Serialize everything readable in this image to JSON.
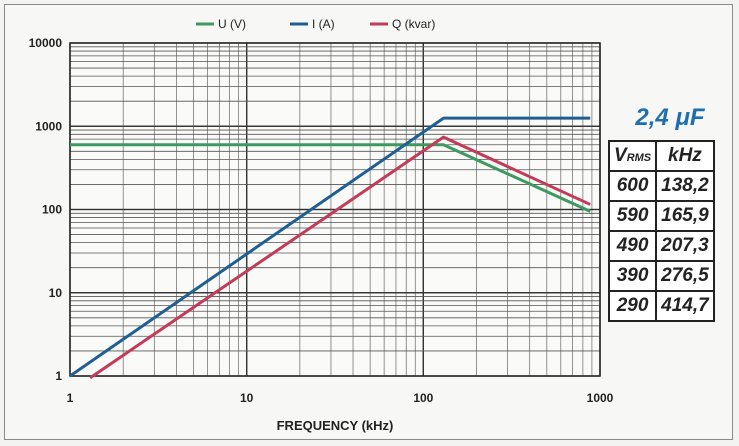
{
  "chart_data": {
    "type": "line",
    "x_scale": "log",
    "y_scale": "log",
    "xlim": [
      1,
      1000
    ],
    "ylim": [
      1,
      10000
    ],
    "xlabel": "FREQUENCY (kHz)",
    "x_ticks": [
      "1",
      "10",
      "100",
      "1000"
    ],
    "y_ticks": [
      "1",
      "10",
      "100",
      "1000",
      "10000"
    ],
    "grid": true,
    "legend_position": "top",
    "series": [
      {
        "name": "U (V)",
        "color": "#3c9a5e",
        "x": [
          1,
          130,
          880
        ],
        "y": [
          600,
          600,
          95
        ]
      },
      {
        "name": "I (A)",
        "color": "#1f5f94",
        "x": [
          1,
          130,
          880
        ],
        "y": [
          1,
          1250,
          1250
        ]
      },
      {
        "name": "Q (kvar)",
        "color": "#c23c5a",
        "x": [
          1.3,
          130,
          880
        ],
        "y": [
          0.95,
          740,
          115
        ]
      }
    ]
  },
  "capacitance_label": "2,4 μF",
  "table": {
    "header_v": "V",
    "header_v_sub": "RMS",
    "header_f": "kHz",
    "rows": [
      [
        "600",
        "138,2"
      ],
      [
        "590",
        "165,9"
      ],
      [
        "490",
        "207,3"
      ],
      [
        "390",
        "276,5"
      ],
      [
        "290",
        "414,7"
      ]
    ]
  }
}
